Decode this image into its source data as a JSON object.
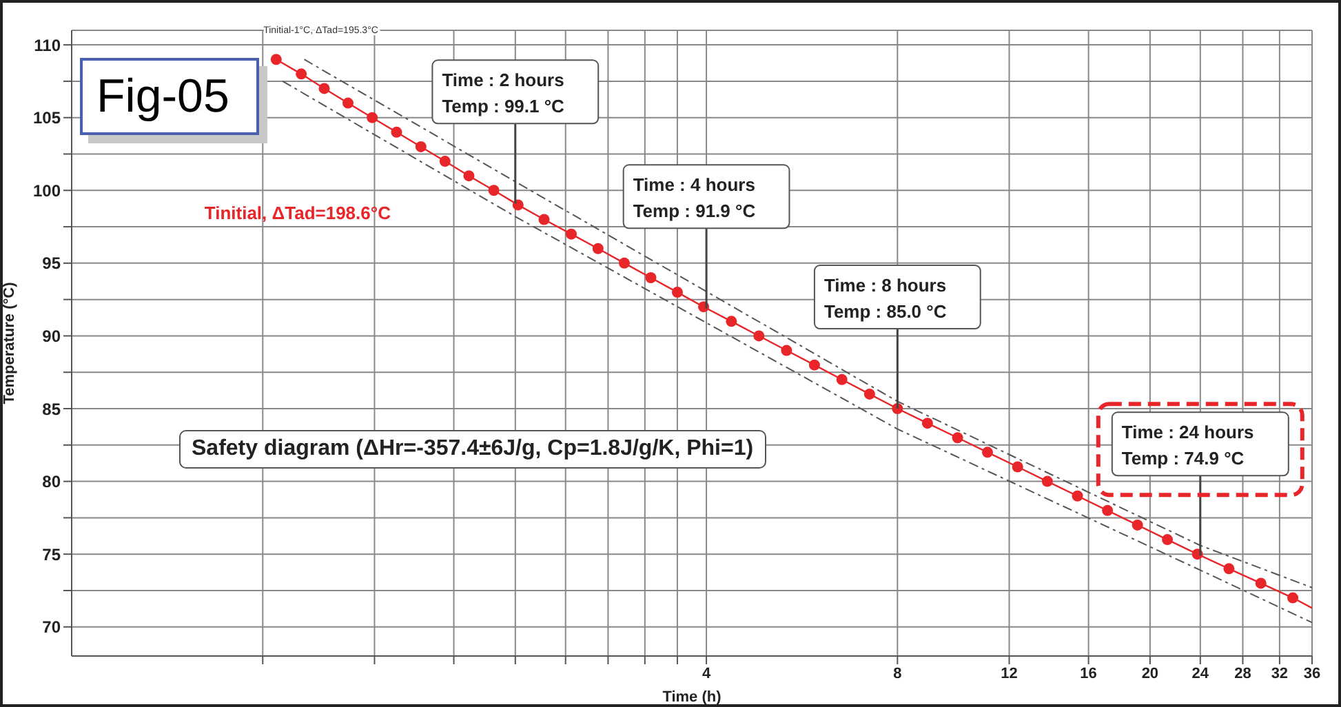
{
  "chart_data": {
    "type": "line",
    "title": "Fig-05",
    "xlabel": "Time (h)",
    "ylabel": "Temperature (°C)",
    "log": "x",
    "grid": true,
    "marker": "circle",
    "xlim": [
      0.4,
      36
    ],
    "xticks": [
      {
        "value": 0.8,
        "label": null
      },
      {
        "value": 1.2,
        "label": null
      },
      {
        "value": 1.6,
        "label": null
      },
      {
        "value": 2,
        "label": null
      },
      {
        "value": 2.4,
        "label": null
      },
      {
        "value": 2.8,
        "label": null
      },
      {
        "value": 3.2,
        "label": null
      },
      {
        "value": 3.6,
        "label": null
      },
      4,
      8,
      12,
      16,
      20,
      24,
      28,
      32,
      36
    ],
    "ylim": [
      68,
      111
    ],
    "yticks": [
      70,
      {
        "value": 72.5,
        "label": null
      },
      75,
      {
        "value": 77.5,
        "label": null
      },
      80,
      {
        "value": 82.5,
        "label": null
      },
      85,
      {
        "value": 87.5,
        "label": null
      },
      90,
      {
        "value": 92.5,
        "label": null
      },
      95,
      {
        "value": 97.5,
        "label": null
      },
      100,
      {
        "value": 102.5,
        "label": null
      },
      105,
      {
        "value": 107.5,
        "label": null
      },
      110
    ],
    "series": [
      {
        "name": "Tinitial, ΔTad=198.6°C",
        "color": "#e8262a",
        "line_style": "solid",
        "x": [
          0.84,
          0.92,
          1.0,
          1.09,
          1.19,
          1.3,
          1.42,
          1.55,
          1.69,
          1.85,
          2.02,
          2.22,
          2.45,
          2.7,
          2.97,
          3.27,
          3.6,
          3.96,
          4.38,
          4.84,
          5.35,
          5.92,
          6.54,
          7.23,
          8,
          8.92,
          9.95,
          11.09,
          12.37,
          13.78,
          15.37,
          17.14,
          19.11,
          21.3,
          23.75,
          26.63,
          29.9,
          33.57
        ],
        "values": [
          109,
          108,
          107,
          106,
          105,
          104,
          103,
          102,
          101,
          100,
          99,
          98,
          97,
          96,
          95,
          94,
          93,
          92,
          91,
          90,
          89,
          88,
          87,
          86,
          85,
          84,
          83,
          82,
          81,
          80,
          79,
          78,
          77,
          76,
          75,
          74,
          73,
          72
        ]
      },
      {
        "color": "#e8262a",
        "line_style": "solid",
        "marker": "none",
        "x": [
          33.57,
          36
        ],
        "values": [
          72,
          71.3
        ]
      },
      {
        "name": "Tinitial-1°C, ΔTad=195.3°C",
        "color": "#555555",
        "line_style": "dashed",
        "marker": "none",
        "x": [
          0.93,
          2,
          8,
          24,
          36
        ],
        "values": [
          109,
          100.6,
          85.5,
          75.6,
          72.7
        ]
      },
      {
        "color": "#555555",
        "line_style": "dashed",
        "marker": "none",
        "x": [
          0.86,
          2,
          8,
          24,
          36
        ],
        "values": [
          107.5,
          98.2,
          83.6,
          73.9,
          70.3
        ]
      }
    ],
    "annotations": [
      {
        "text": "Time : 2 hours\nTemp : 99.1 °C",
        "x": 2,
        "y": 99.1
      },
      {
        "text": "Time : 4 hours\nTemp : 91.9 °C",
        "x": 4,
        "y": 91.9
      },
      {
        "text": "Time : 8 hours\nTemp : 85.0 °C",
        "x": 8,
        "y": 85.0
      },
      {
        "text": "Time : 24 hours\nTemp : 74.9 °C",
        "x": 24,
        "y": 74.9
      },
      "Safety diagram (ΔHr=-357.4±6J/g, Cp=1.8J/g/K, Phi=1)"
    ]
  }
}
